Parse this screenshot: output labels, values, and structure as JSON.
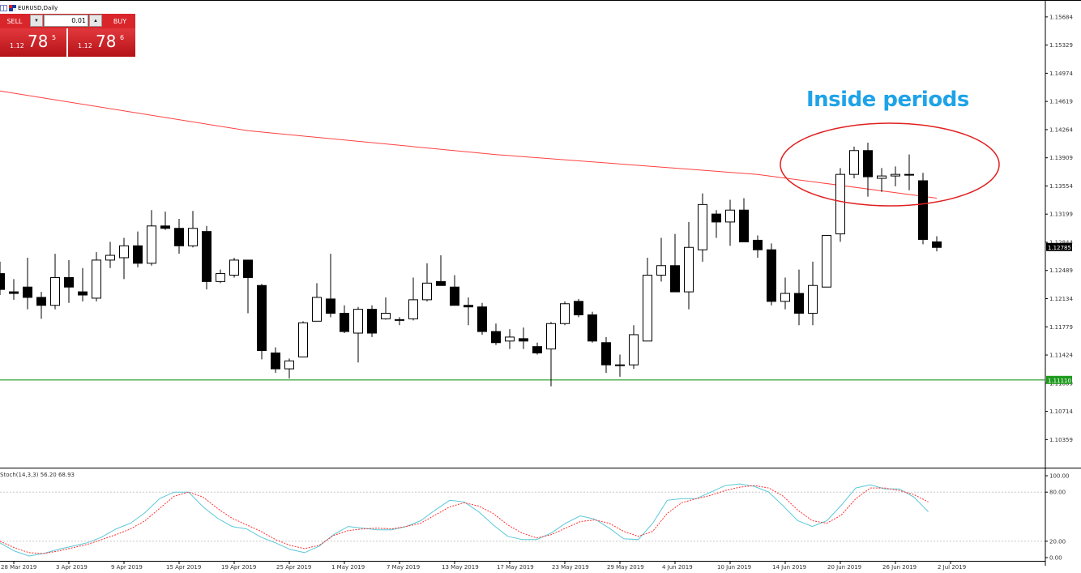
{
  "symbol_label": "EURUSD,Daily",
  "trade_panel": {
    "sell_label": "SELL",
    "buy_label": "BUY",
    "lot_value": "0.01",
    "dec_glyph": "▼",
    "inc_glyph": "▲",
    "sell_price_prefix": "1.12",
    "sell_price_big": "78",
    "sell_price_sup": "5",
    "buy_price_prefix": "1.12",
    "buy_price_big": "78",
    "buy_price_sup": "6"
  },
  "annotation": "Inside periods",
  "colors": {
    "ma_line": "#ff4040",
    "support_line": "#1e9a1e",
    "annotation": "#1fa3e8",
    "ellipse": "#e02020",
    "stoch_main": "#5bc8d8",
    "stoch_signal": "#ff3030",
    "price_tag": "#000000",
    "support_tag": "#1e9a1e"
  },
  "chart_data": [
    {
      "type": "candlestick",
      "ylim": [
        1.10005,
        1.15897
      ],
      "yticks": [
        "1.15684",
        "1.15329",
        "1.14974",
        "1.14619",
        "1.14264",
        "1.13909",
        "1.13554",
        "1.13199",
        "1.12844",
        "1.12489",
        "1.12134",
        "1.11779",
        "1.11424",
        "1.11069",
        "1.10714",
        "1.10359"
      ],
      "current_price_label": "1.12785",
      "current_price": 1.12785,
      "support_label": "1.11110",
      "support_level": 1.1111,
      "x_labels": [
        {
          "index": 1,
          "label": "28 Mar 2019"
        },
        {
          "index": 5,
          "label": "3 Apr 2019"
        },
        {
          "index": 9,
          "label": "9 Apr 2019"
        },
        {
          "index": 13,
          "label": "15 Apr 2019"
        },
        {
          "index": 17,
          "label": "19 Apr 2019"
        },
        {
          "index": 21,
          "label": "25 Apr 2019"
        },
        {
          "index": 25,
          "label": "1 May 2019"
        },
        {
          "index": 29,
          "label": "7 May 2019"
        },
        {
          "index": 33,
          "label": "13 May 2019"
        },
        {
          "index": 37,
          "label": "17 May 2019"
        },
        {
          "index": 41,
          "label": "23 May 2019"
        },
        {
          "index": 45,
          "label": "29 May 2019"
        },
        {
          "index": 49,
          "label": "4 Jun 2019"
        },
        {
          "index": 53,
          "label": "10 Jun 2019"
        },
        {
          "index": 57,
          "label": "14 Jun 2019"
        },
        {
          "index": 61,
          "label": "20 Jun 2019"
        },
        {
          "index": 65,
          "label": "26 Jun 2019"
        },
        {
          "index": 69,
          "label": "2 Jul 2019"
        }
      ],
      "candles": [
        {
          "o": 1.1245,
          "h": 1.126,
          "l": 1.1218,
          "c": 1.1225
        },
        {
          "o": 1.1222,
          "h": 1.1238,
          "l": 1.1212,
          "c": 1.122
        },
        {
          "o": 1.1228,
          "h": 1.1265,
          "l": 1.12,
          "c": 1.1215
        },
        {
          "o": 1.1215,
          "h": 1.1222,
          "l": 1.1188,
          "c": 1.1205
        },
        {
          "o": 1.1205,
          "h": 1.127,
          "l": 1.12,
          "c": 1.124
        },
        {
          "o": 1.124,
          "h": 1.1262,
          "l": 1.1208,
          "c": 1.1228
        },
        {
          "o": 1.1222,
          "h": 1.1252,
          "l": 1.121,
          "c": 1.1218
        },
        {
          "o": 1.1214,
          "h": 1.1272,
          "l": 1.121,
          "c": 1.1262
        },
        {
          "o": 1.1262,
          "h": 1.1285,
          "l": 1.1252,
          "c": 1.1268
        },
        {
          "o": 1.1265,
          "h": 1.129,
          "l": 1.1238,
          "c": 1.128
        },
        {
          "o": 1.128,
          "h": 1.1298,
          "l": 1.1253,
          "c": 1.1258
        },
        {
          "o": 1.1258,
          "h": 1.1325,
          "l": 1.1255,
          "c": 1.1305
        },
        {
          "o": 1.1305,
          "h": 1.1323,
          "l": 1.13,
          "c": 1.1302
        },
        {
          "o": 1.1302,
          "h": 1.1314,
          "l": 1.127,
          "c": 1.128
        },
        {
          "o": 1.128,
          "h": 1.1324,
          "l": 1.1278,
          "c": 1.1302
        },
        {
          "o": 1.1298,
          "h": 1.1305,
          "l": 1.1225,
          "c": 1.1235
        },
        {
          "o": 1.1235,
          "h": 1.125,
          "l": 1.1233,
          "c": 1.1245
        },
        {
          "o": 1.1243,
          "h": 1.1265,
          "l": 1.124,
          "c": 1.1262
        },
        {
          "o": 1.1262,
          "h": 1.1262,
          "l": 1.1195,
          "c": 1.124
        },
        {
          "o": 1.123,
          "h": 1.1232,
          "l": 1.1137,
          "c": 1.1148
        },
        {
          "o": 1.1145,
          "h": 1.1152,
          "l": 1.112,
          "c": 1.1125
        },
        {
          "o": 1.1125,
          "h": 1.1138,
          "l": 1.1113,
          "c": 1.1135
        },
        {
          "o": 1.114,
          "h": 1.1185,
          "l": 1.114,
          "c": 1.1183
        },
        {
          "o": 1.1185,
          "h": 1.1233,
          "l": 1.1185,
          "c": 1.1215
        },
        {
          "o": 1.1213,
          "h": 1.127,
          "l": 1.119,
          "c": 1.1195
        },
        {
          "o": 1.1195,
          "h": 1.1205,
          "l": 1.117,
          "c": 1.1172
        },
        {
          "o": 1.117,
          "h": 1.1203,
          "l": 1.1133,
          "c": 1.12
        },
        {
          "o": 1.12,
          "h": 1.1205,
          "l": 1.1165,
          "c": 1.117
        },
        {
          "o": 1.1188,
          "h": 1.1215,
          "l": 1.1187,
          "c": 1.1195
        },
        {
          "o": 1.1187,
          "h": 1.119,
          "l": 1.118,
          "c": 1.1186
        },
        {
          "o": 1.1188,
          "h": 1.124,
          "l": 1.1186,
          "c": 1.1212
        },
        {
          "o": 1.1212,
          "h": 1.1258,
          "l": 1.121,
          "c": 1.1233
        },
        {
          "o": 1.1235,
          "h": 1.1268,
          "l": 1.123,
          "c": 1.123
        },
        {
          "o": 1.1228,
          "h": 1.1243,
          "l": 1.121,
          "c": 1.1205
        },
        {
          "o": 1.1205,
          "h": 1.1215,
          "l": 1.118,
          "c": 1.1203
        },
        {
          "o": 1.1203,
          "h": 1.1208,
          "l": 1.1168,
          "c": 1.1172
        },
        {
          "o": 1.1172,
          "h": 1.1182,
          "l": 1.1155,
          "c": 1.1158
        },
        {
          "o": 1.116,
          "h": 1.1175,
          "l": 1.115,
          "c": 1.1165
        },
        {
          "o": 1.1163,
          "h": 1.1177,
          "l": 1.115,
          "c": 1.116
        },
        {
          "o": 1.1153,
          "h": 1.1158,
          "l": 1.1143,
          "c": 1.1145
        },
        {
          "o": 1.115,
          "h": 1.1184,
          "l": 1.1103,
          "c": 1.1182
        },
        {
          "o": 1.1182,
          "h": 1.121,
          "l": 1.118,
          "c": 1.1207
        },
        {
          "o": 1.121,
          "h": 1.1213,
          "l": 1.119,
          "c": 1.1193
        },
        {
          "o": 1.1193,
          "h": 1.1197,
          "l": 1.1158,
          "c": 1.116
        },
        {
          "o": 1.1158,
          "h": 1.1165,
          "l": 1.112,
          "c": 1.113
        },
        {
          "o": 1.113,
          "h": 1.1143,
          "l": 1.1115,
          "c": 1.113
        },
        {
          "o": 1.113,
          "h": 1.118,
          "l": 1.1125,
          "c": 1.1168
        },
        {
          "o": 1.116,
          "h": 1.1265,
          "l": 1.116,
          "c": 1.1243
        },
        {
          "o": 1.1243,
          "h": 1.129,
          "l": 1.1235,
          "c": 1.1255
        },
        {
          "o": 1.1255,
          "h": 1.1295,
          "l": 1.1222,
          "c": 1.1222
        },
        {
          "o": 1.1222,
          "h": 1.131,
          "l": 1.12,
          "c": 1.1278
        },
        {
          "o": 1.1275,
          "h": 1.1346,
          "l": 1.126,
          "c": 1.1332
        },
        {
          "o": 1.132,
          "h": 1.1325,
          "l": 1.129,
          "c": 1.131
        },
        {
          "o": 1.131,
          "h": 1.1338,
          "l": 1.128,
          "c": 1.1325
        },
        {
          "o": 1.1325,
          "h": 1.134,
          "l": 1.1285,
          "c": 1.1285
        },
        {
          "o": 1.1287,
          "h": 1.1293,
          "l": 1.1265,
          "c": 1.1275
        },
        {
          "o": 1.1275,
          "h": 1.1283,
          "l": 1.1205,
          "c": 1.121
        },
        {
          "o": 1.121,
          "h": 1.124,
          "l": 1.12,
          "c": 1.122
        },
        {
          "o": 1.122,
          "h": 1.125,
          "l": 1.118,
          "c": 1.1195
        },
        {
          "o": 1.1195,
          "h": 1.126,
          "l": 1.118,
          "c": 1.123
        },
        {
          "o": 1.1228,
          "h": 1.1293,
          "l": 1.1228,
          "c": 1.1293
        },
        {
          "o": 1.1295,
          "h": 1.1378,
          "l": 1.1285,
          "c": 1.137
        },
        {
          "o": 1.137,
          "h": 1.1405,
          "l": 1.1365,
          "c": 1.14
        },
        {
          "o": 1.14,
          "h": 1.141,
          "l": 1.1342,
          "c": 1.1367
        },
        {
          "o": 1.1365,
          "h": 1.1378,
          "l": 1.1348,
          "c": 1.1368
        },
        {
          "o": 1.1368,
          "h": 1.138,
          "l": 1.1355,
          "c": 1.137
        },
        {
          "o": 1.137,
          "h": 1.1395,
          "l": 1.135,
          "c": 1.137
        },
        {
          "o": 1.1362,
          "h": 1.1372,
          "l": 1.1282,
          "c": 1.1288
        },
        {
          "o": 1.1285,
          "h": 1.1292,
          "l": 1.1273,
          "c": 1.1278
        }
      ],
      "moving_average": [
        {
          "index": 0,
          "value": 1.1475
        },
        {
          "index": 18,
          "value": 1.1425
        },
        {
          "index": 36,
          "value": 1.1395
        },
        {
          "index": 55,
          "value": 1.137
        },
        {
          "index": 68,
          "value": 1.134
        }
      ],
      "inside_period_range": [
        62,
        67
      ]
    },
    {
      "type": "line",
      "indicator_label": "Stoch(14,3,3) 56.20 68.93",
      "yticks": [
        "100.00",
        "80.00",
        "20.00",
        "0.00"
      ],
      "ylim": [
        0,
        100
      ],
      "levels": [
        80,
        20
      ],
      "series": [
        {
          "role": "main",
          "values": [
            18,
            8,
            2,
            5,
            10,
            14,
            18,
            25,
            35,
            42,
            55,
            72,
            80,
            80,
            62,
            48,
            38,
            35,
            25,
            18,
            10,
            6,
            14,
            28,
            38,
            36,
            34,
            34,
            38,
            45,
            58,
            70,
            68,
            56,
            40,
            26,
            22,
            22,
            30,
            42,
            51,
            47,
            36,
            23,
            22,
            42,
            70,
            72,
            72,
            80,
            88,
            90,
            87,
            80,
            63,
            45,
            38,
            45,
            64,
            85,
            89,
            84,
            84,
            74,
            56
          ]
        },
        {
          "role": "signal",
          "values": [
            20,
            12,
            6,
            5,
            8,
            12,
            16,
            22,
            28,
            35,
            45,
            60,
            75,
            80,
            74,
            60,
            48,
            40,
            32,
            22,
            15,
            11,
            15,
            27,
            33,
            35,
            36,
            35,
            38,
            42,
            52,
            62,
            67,
            63,
            54,
            40,
            30,
            24,
            28,
            36,
            44,
            46,
            42,
            32,
            26,
            32,
            54,
            67,
            72,
            76,
            82,
            86,
            88,
            85,
            75,
            58,
            45,
            42,
            52,
            72,
            85,
            85,
            82,
            77,
            68
          ]
        }
      ]
    }
  ]
}
